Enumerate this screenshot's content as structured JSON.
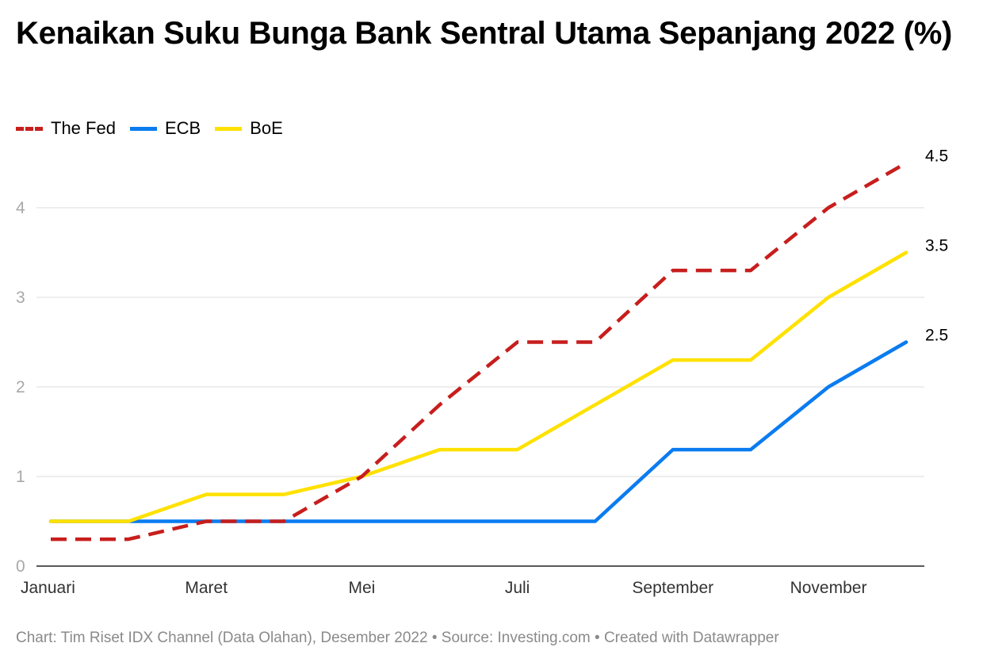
{
  "title": "Kenaikan Suku Bunga Bank Sentral Utama Sepanjang 2022 (%)",
  "footer": "Chart: Tim Riset IDX Channel (Data Olahan), Desember 2022 • Source: Investing.com • Created with Datawrapper",
  "chart_data": {
    "type": "line",
    "title": "Kenaikan Suku Bunga Bank Sentral Utama Sepanjang 2022 (%)",
    "xlabel": "",
    "ylabel": "",
    "x_tick_labels": [
      "Januari",
      "Maret",
      "Mei",
      "Juli",
      "September",
      "November"
    ],
    "x_tick_indices": [
      0,
      2,
      4,
      6,
      8,
      10
    ],
    "y_ticks": [
      0,
      1,
      2,
      3,
      4
    ],
    "ylim": [
      0,
      4.5
    ],
    "grid": true,
    "legend_position": "top-left",
    "series": [
      {
        "name": "The Fed",
        "color": "#c71e1d",
        "dashed": true,
        "values": [
          0.3,
          0.3,
          0.5,
          0.5,
          1.0,
          1.8,
          2.5,
          2.5,
          3.3,
          3.3,
          4.0,
          4.5
        ],
        "end_label": "4.5"
      },
      {
        "name": "ECB",
        "color": "#0a7cf0",
        "dashed": false,
        "values": [
          0.5,
          0.5,
          0.5,
          0.5,
          0.5,
          0.5,
          0.5,
          0.5,
          1.3,
          1.3,
          2.0,
          2.5
        ],
        "end_label": "2.5"
      },
      {
        "name": "BoE",
        "color": "#ffe100",
        "dashed": false,
        "values": [
          0.5,
          0.5,
          0.8,
          0.8,
          1.0,
          1.3,
          1.3,
          1.8,
          2.3,
          2.3,
          3.0,
          3.5
        ],
        "end_label": "3.5"
      }
    ]
  }
}
